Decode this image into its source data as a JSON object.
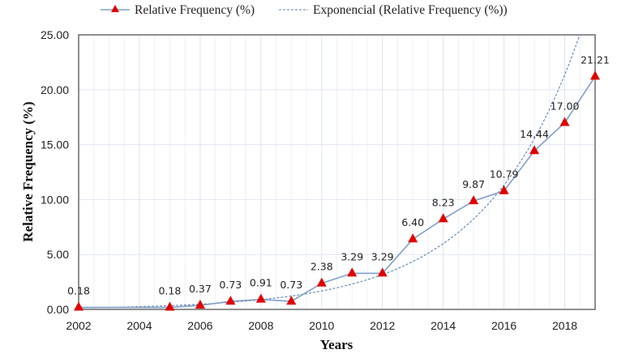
{
  "chart_data": {
    "type": "line",
    "title": "",
    "xlabel": "Years",
    "ylabel": "Relative Frequency (%)",
    "xlim": [
      2002,
      2019
    ],
    "ylim": [
      0,
      25
    ],
    "x_ticks": [
      2002,
      2004,
      2006,
      2008,
      2010,
      2012,
      2014,
      2016,
      2018
    ],
    "x_tick_labels": [
      "2002",
      "2004",
      "2006",
      "2008",
      "2010",
      "2012",
      "2014",
      "2016",
      "2018"
    ],
    "y_ticks": [
      0,
      5,
      10,
      15,
      20,
      25
    ],
    "y_tick_labels": [
      "0.00",
      "5.00",
      "10.00",
      "15.00",
      "20.00",
      "25.00"
    ],
    "grid": true,
    "legend_position": "top",
    "series": [
      {
        "name": "Relative Frequency (%)",
        "style": "solid-line-with-triangle-markers",
        "line_color": "#7f9fc6",
        "marker_color": "#e00000",
        "x": [
          2002,
          2005,
          2006,
          2007,
          2008,
          2009,
          2010,
          2011,
          2012,
          2013,
          2014,
          2015,
          2016,
          2017,
          2018,
          2019
        ],
        "values": [
          0.18,
          0.18,
          0.37,
          0.73,
          0.91,
          0.73,
          2.38,
          3.29,
          3.29,
          6.4,
          8.23,
          9.87,
          10.79,
          14.44,
          17.0,
          21.21
        ],
        "labels": [
          "0.18",
          "0.18",
          "0.37",
          "0.73",
          "0.91",
          "0.73",
          "2.38",
          "3.29",
          "3.29",
          "6.40",
          "8.23",
          "9.87",
          "10.79",
          "14.44",
          "17.00",
          "21.21"
        ]
      },
      {
        "name": "Exponencial (Relative Frequency (%))",
        "style": "dashed-trendline",
        "line_color": "#5b82b3",
        "fit": "exponential",
        "x_range": [
          2002,
          2019
        ]
      }
    ]
  },
  "legend": {
    "items": [
      {
        "label": "Relative Frequency (%)"
      },
      {
        "label": "Exponencial (Relative Frequency (%))"
      }
    ]
  }
}
